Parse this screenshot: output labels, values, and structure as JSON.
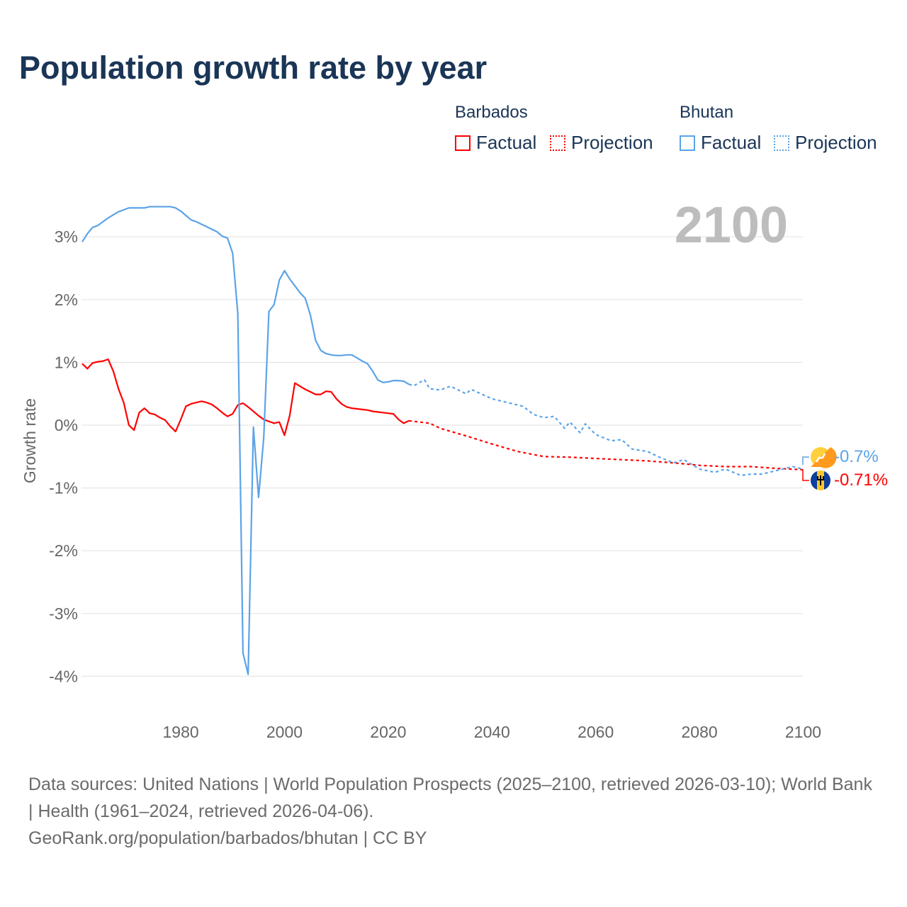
{
  "title": "Population growth rate by year",
  "legend": {
    "groups": [
      {
        "name": "Barbados",
        "factual": "Factual",
        "projection": "Projection",
        "color": "#ff0000"
      },
      {
        "name": "Bhutan",
        "factual": "Factual",
        "projection": "Projection",
        "color": "#5ba3e8"
      }
    ]
  },
  "current_year_label": "2100",
  "end_labels": {
    "bhutan": "-0.7%",
    "barbados": "-0.71%"
  },
  "footer": {
    "sources": "Data sources: United Nations | World Population Prospects (2025–2100, retrieved 2026-03-10); World Bank | Health (1961–2024, retrieved 2026-04-06).",
    "link": "GeoRank.org/population/barbados/bhutan | CC BY"
  },
  "chart_data": {
    "type": "line",
    "title": "Population growth rate by year",
    "xlabel": "",
    "ylabel": "Growth rate",
    "xlim": [
      1961,
      2100
    ],
    "ylim": [
      -4.5,
      3.7
    ],
    "x_ticks": [
      1980,
      2000,
      2020,
      2040,
      2060,
      2080,
      2100
    ],
    "y_ticks": [
      3,
      2,
      1,
      0,
      -1,
      -2,
      -3,
      -4
    ],
    "y_tick_labels": [
      "3%",
      "2%",
      "1%",
      "0%",
      "-1%",
      "-2%",
      "-3%",
      "-4%"
    ],
    "grid": true,
    "legend_position": "top-right",
    "series": [
      {
        "name": "Barbados Factual",
        "color": "#ff0000",
        "style": "solid",
        "x": [
          1961,
          1962,
          1963,
          1964,
          1965,
          1966,
          1967,
          1968,
          1969,
          1970,
          1971,
          1972,
          1973,
          1974,
          1975,
          1976,
          1977,
          1978,
          1979,
          1980,
          1981,
          1982,
          1983,
          1984,
          1985,
          1986,
          1987,
          1988,
          1989,
          1990,
          1991,
          1992,
          1993,
          1994,
          1995,
          1996,
          1997,
          1998,
          1999,
          2000,
          2001,
          2002,
          2003,
          2004,
          2005,
          2006,
          2007,
          2008,
          2009,
          2010,
          2011,
          2012,
          2013,
          2014,
          2015,
          2016,
          2017,
          2018,
          2019,
          2020,
          2021,
          2022,
          2023,
          2024
        ],
        "y": [
          0.98,
          0.9,
          0.99,
          1.01,
          1.02,
          1.05,
          0.86,
          0.58,
          0.36,
          0.0,
          -0.08,
          0.2,
          0.27,
          0.19,
          0.17,
          0.12,
          0.08,
          -0.02,
          -0.1,
          0.09,
          0.3,
          0.34,
          0.36,
          0.38,
          0.36,
          0.33,
          0.27,
          0.2,
          0.14,
          0.18,
          0.32,
          0.35,
          0.29,
          0.22,
          0.15,
          0.09,
          0.06,
          0.03,
          0.05,
          -0.16,
          0.15,
          0.67,
          0.62,
          0.57,
          0.53,
          0.49,
          0.49,
          0.54,
          0.53,
          0.42,
          0.34,
          0.29,
          0.27,
          0.26,
          0.25,
          0.24,
          0.22,
          0.21,
          0.2,
          0.19,
          0.18,
          0.09,
          0.03,
          0.07
        ]
      },
      {
        "name": "Barbados Projection",
        "color": "#ff0000",
        "style": "dotted",
        "x": [
          2024,
          2025,
          2028,
          2030,
          2035,
          2040,
          2045,
          2050,
          2055,
          2060,
          2065,
          2070,
          2075,
          2080,
          2085,
          2090,
          2095,
          2100
        ],
        "y": [
          0.07,
          0.06,
          0.03,
          -0.05,
          -0.17,
          -0.3,
          -0.42,
          -0.5,
          -0.51,
          -0.53,
          -0.55,
          -0.57,
          -0.6,
          -0.64,
          -0.66,
          -0.66,
          -0.69,
          -0.71
        ]
      },
      {
        "name": "Bhutan Factual",
        "color": "#5ba3e8",
        "style": "solid",
        "x": [
          1961,
          1962,
          1963,
          1964,
          1965,
          1966,
          1967,
          1968,
          1969,
          1970,
          1971,
          1972,
          1973,
          1974,
          1975,
          1976,
          1977,
          1978,
          1979,
          1980,
          1981,
          1982,
          1983,
          1984,
          1985,
          1986,
          1987,
          1988,
          1989,
          1990,
          1991,
          1992,
          1993,
          1994,
          1995,
          1996,
          1997,
          1998,
          1999,
          2000,
          2001,
          2002,
          2003,
          2004,
          2005,
          2006,
          2007,
          2008,
          2009,
          2010,
          2011,
          2012,
          2013,
          2014,
          2015,
          2016,
          2017,
          2018,
          2019,
          2020,
          2021,
          2022,
          2023,
          2024
        ],
        "y": [
          2.92,
          3.05,
          3.15,
          3.18,
          3.24,
          3.3,
          3.35,
          3.4,
          3.43,
          3.46,
          3.46,
          3.46,
          3.46,
          3.48,
          3.48,
          3.48,
          3.48,
          3.48,
          3.46,
          3.41,
          3.34,
          3.27,
          3.24,
          3.2,
          3.16,
          3.12,
          3.08,
          3.01,
          2.98,
          2.74,
          1.78,
          -3.63,
          -3.97,
          -0.03,
          -1.15,
          -0.2,
          1.81,
          1.92,
          2.31,
          2.46,
          2.33,
          2.22,
          2.11,
          2.02,
          1.75,
          1.35,
          1.19,
          1.14,
          1.12,
          1.11,
          1.11,
          1.12,
          1.12,
          1.07,
          1.02,
          0.98,
          0.86,
          0.72,
          0.68,
          0.69,
          0.71,
          0.71,
          0.7,
          0.65
        ]
      },
      {
        "name": "Bhutan Projection",
        "color": "#5ba3e8",
        "style": "dotted",
        "x": [
          2024,
          2025,
          2026,
          2027,
          2028,
          2030,
          2032,
          2035,
          2036,
          2040,
          2043,
          2046,
          2048,
          2050,
          2052,
          2054,
          2055,
          2057,
          2058,
          2060,
          2063,
          2065,
          2067,
          2070,
          2072,
          2075,
          2077,
          2080,
          2083,
          2085,
          2088,
          2090,
          2092,
          2095,
          2098,
          2100
        ],
        "y": [
          0.65,
          0.63,
          0.68,
          0.72,
          0.58,
          0.56,
          0.62,
          0.5,
          0.57,
          0.42,
          0.36,
          0.3,
          0.17,
          0.12,
          0.14,
          -0.05,
          0.05,
          -0.12,
          0.02,
          -0.15,
          -0.25,
          -0.23,
          -0.38,
          -0.42,
          -0.5,
          -0.6,
          -0.55,
          -0.7,
          -0.75,
          -0.7,
          -0.8,
          -0.78,
          -0.78,
          -0.72,
          -0.66,
          -0.7
        ]
      }
    ]
  }
}
